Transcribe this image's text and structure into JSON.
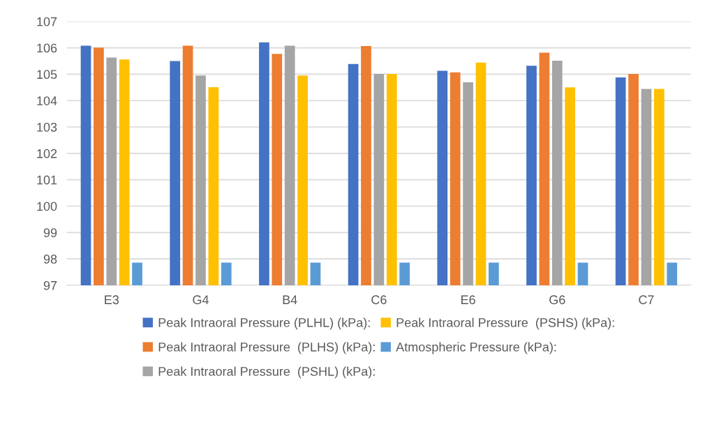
{
  "chart_data": {
    "type": "bar",
    "categories": [
      "E3",
      "G4",
      "B4",
      "C6",
      "E6",
      "G6",
      "C7"
    ],
    "series": [
      {
        "name": "Peak Intraoral Pressure (PLHL) (kPa):",
        "color": "#4472c4",
        "values": [
          106.08,
          105.5,
          106.21,
          105.39,
          105.13,
          105.32,
          104.88
        ]
      },
      {
        "name": "Peak Intraoral Pressure  (PLHS) (kPa):",
        "color": "#ed7d31",
        "values": [
          106.01,
          106.08,
          105.77,
          106.07,
          105.07,
          105.82,
          105.01
        ]
      },
      {
        "name": "Peak Intraoral Pressure  (PSHL) (kPa):",
        "color": "#a5a5a5",
        "values": [
          105.63,
          104.95,
          106.08,
          105.01,
          104.69,
          105.51,
          104.44
        ]
      },
      {
        "name": "Peak Intraoral Pressure  (PSHS) (kPa):",
        "color": "#ffc000",
        "values": [
          105.56,
          104.51,
          104.95,
          105.01,
          105.44,
          104.5,
          104.44
        ]
      },
      {
        "name": "Atmospheric Pressure (kPa):",
        "color": "#5b9bd5",
        "values": [
          97.86,
          97.86,
          97.86,
          97.86,
          97.86,
          97.86,
          97.86
        ]
      }
    ],
    "ylim": [
      97,
      107
    ],
    "yticks": [
      97,
      98,
      99,
      100,
      101,
      102,
      103,
      104,
      105,
      106,
      107
    ],
    "grid": "y",
    "legend": "bottom"
  }
}
